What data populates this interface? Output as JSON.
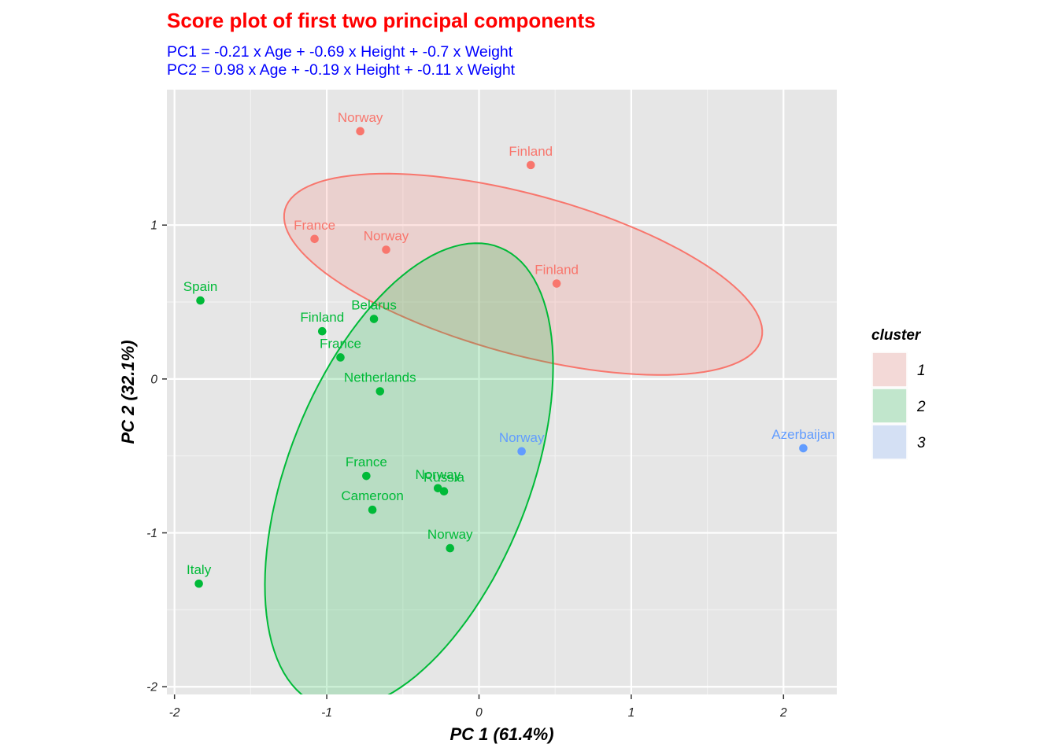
{
  "chart_data": {
    "type": "scatter",
    "title": "Score plot of first two principal components",
    "subtitle_lines": [
      "PC1 = -0.21 x Age + -0.69 x Height + -0.7 x Weight",
      "PC2 = 0.98 x Age + -0.19 x Height + -0.11 x Weight"
    ],
    "xlabel": "PC 1 (61.4%)",
    "ylabel": "PC 2 (32.1%)",
    "xlim": [
      -2.05,
      2.35
    ],
    "ylim": [
      -2.05,
      1.88
    ],
    "xticks": [
      -2,
      -1,
      0,
      1,
      2
    ],
    "yticks": [
      -2,
      -1,
      0,
      1
    ],
    "grid": true,
    "legend": {
      "title": "cluster",
      "position": "right",
      "entries": [
        {
          "label": "1",
          "color": "#F8766D"
        },
        {
          "label": "2",
          "color": "#00BA38"
        },
        {
          "label": "3",
          "color": "#619CFF"
        }
      ]
    },
    "series": [
      {
        "cluster": "1",
        "color": "#F8766D",
        "points": [
          {
            "label": "Norway",
            "x": -0.78,
            "y": 1.61
          },
          {
            "label": "Finland",
            "x": 0.34,
            "y": 1.39
          },
          {
            "label": "France",
            "x": -1.08,
            "y": 0.91
          },
          {
            "label": "Norway",
            "x": -0.61,
            "y": 0.84
          },
          {
            "label": "Finland",
            "x": 0.51,
            "y": 0.62
          }
        ],
        "ellipse": {
          "cx": 0.29,
          "cy": 0.68,
          "rx": 1.62,
          "ry": 0.52,
          "angle_deg": -15
        }
      },
      {
        "cluster": "2",
        "color": "#00BA38",
        "points": [
          {
            "label": "Spain",
            "x": -1.83,
            "y": 0.51
          },
          {
            "label": "Belarus",
            "x": -0.69,
            "y": 0.39
          },
          {
            "label": "Finland",
            "x": -1.03,
            "y": 0.31
          },
          {
            "label": "France",
            "x": -0.91,
            "y": 0.14
          },
          {
            "label": "Netherlands",
            "x": -0.65,
            "y": -0.08
          },
          {
            "label": "France",
            "x": -0.74,
            "y": -0.63
          },
          {
            "label": "Norway",
            "x": -0.27,
            "y": -0.71
          },
          {
            "label": "Russia",
            "x": -0.23,
            "y": -0.73
          },
          {
            "label": "Cameroon",
            "x": -0.7,
            "y": -0.85
          },
          {
            "label": "Norway",
            "x": -0.19,
            "y": -1.1
          },
          {
            "label": "Italy",
            "x": -1.84,
            "y": -1.33
          }
        ],
        "ellipse": {
          "cx": -0.46,
          "cy": -0.63,
          "rx": 1.6,
          "ry": 0.79,
          "angle_deg": 68
        }
      },
      {
        "cluster": "3",
        "color": "#619CFF",
        "points": [
          {
            "label": "Norway",
            "x": 0.28,
            "y": -0.47
          },
          {
            "label": "Azerbaijan",
            "x": 2.13,
            "y": -0.45
          }
        ]
      }
    ]
  }
}
